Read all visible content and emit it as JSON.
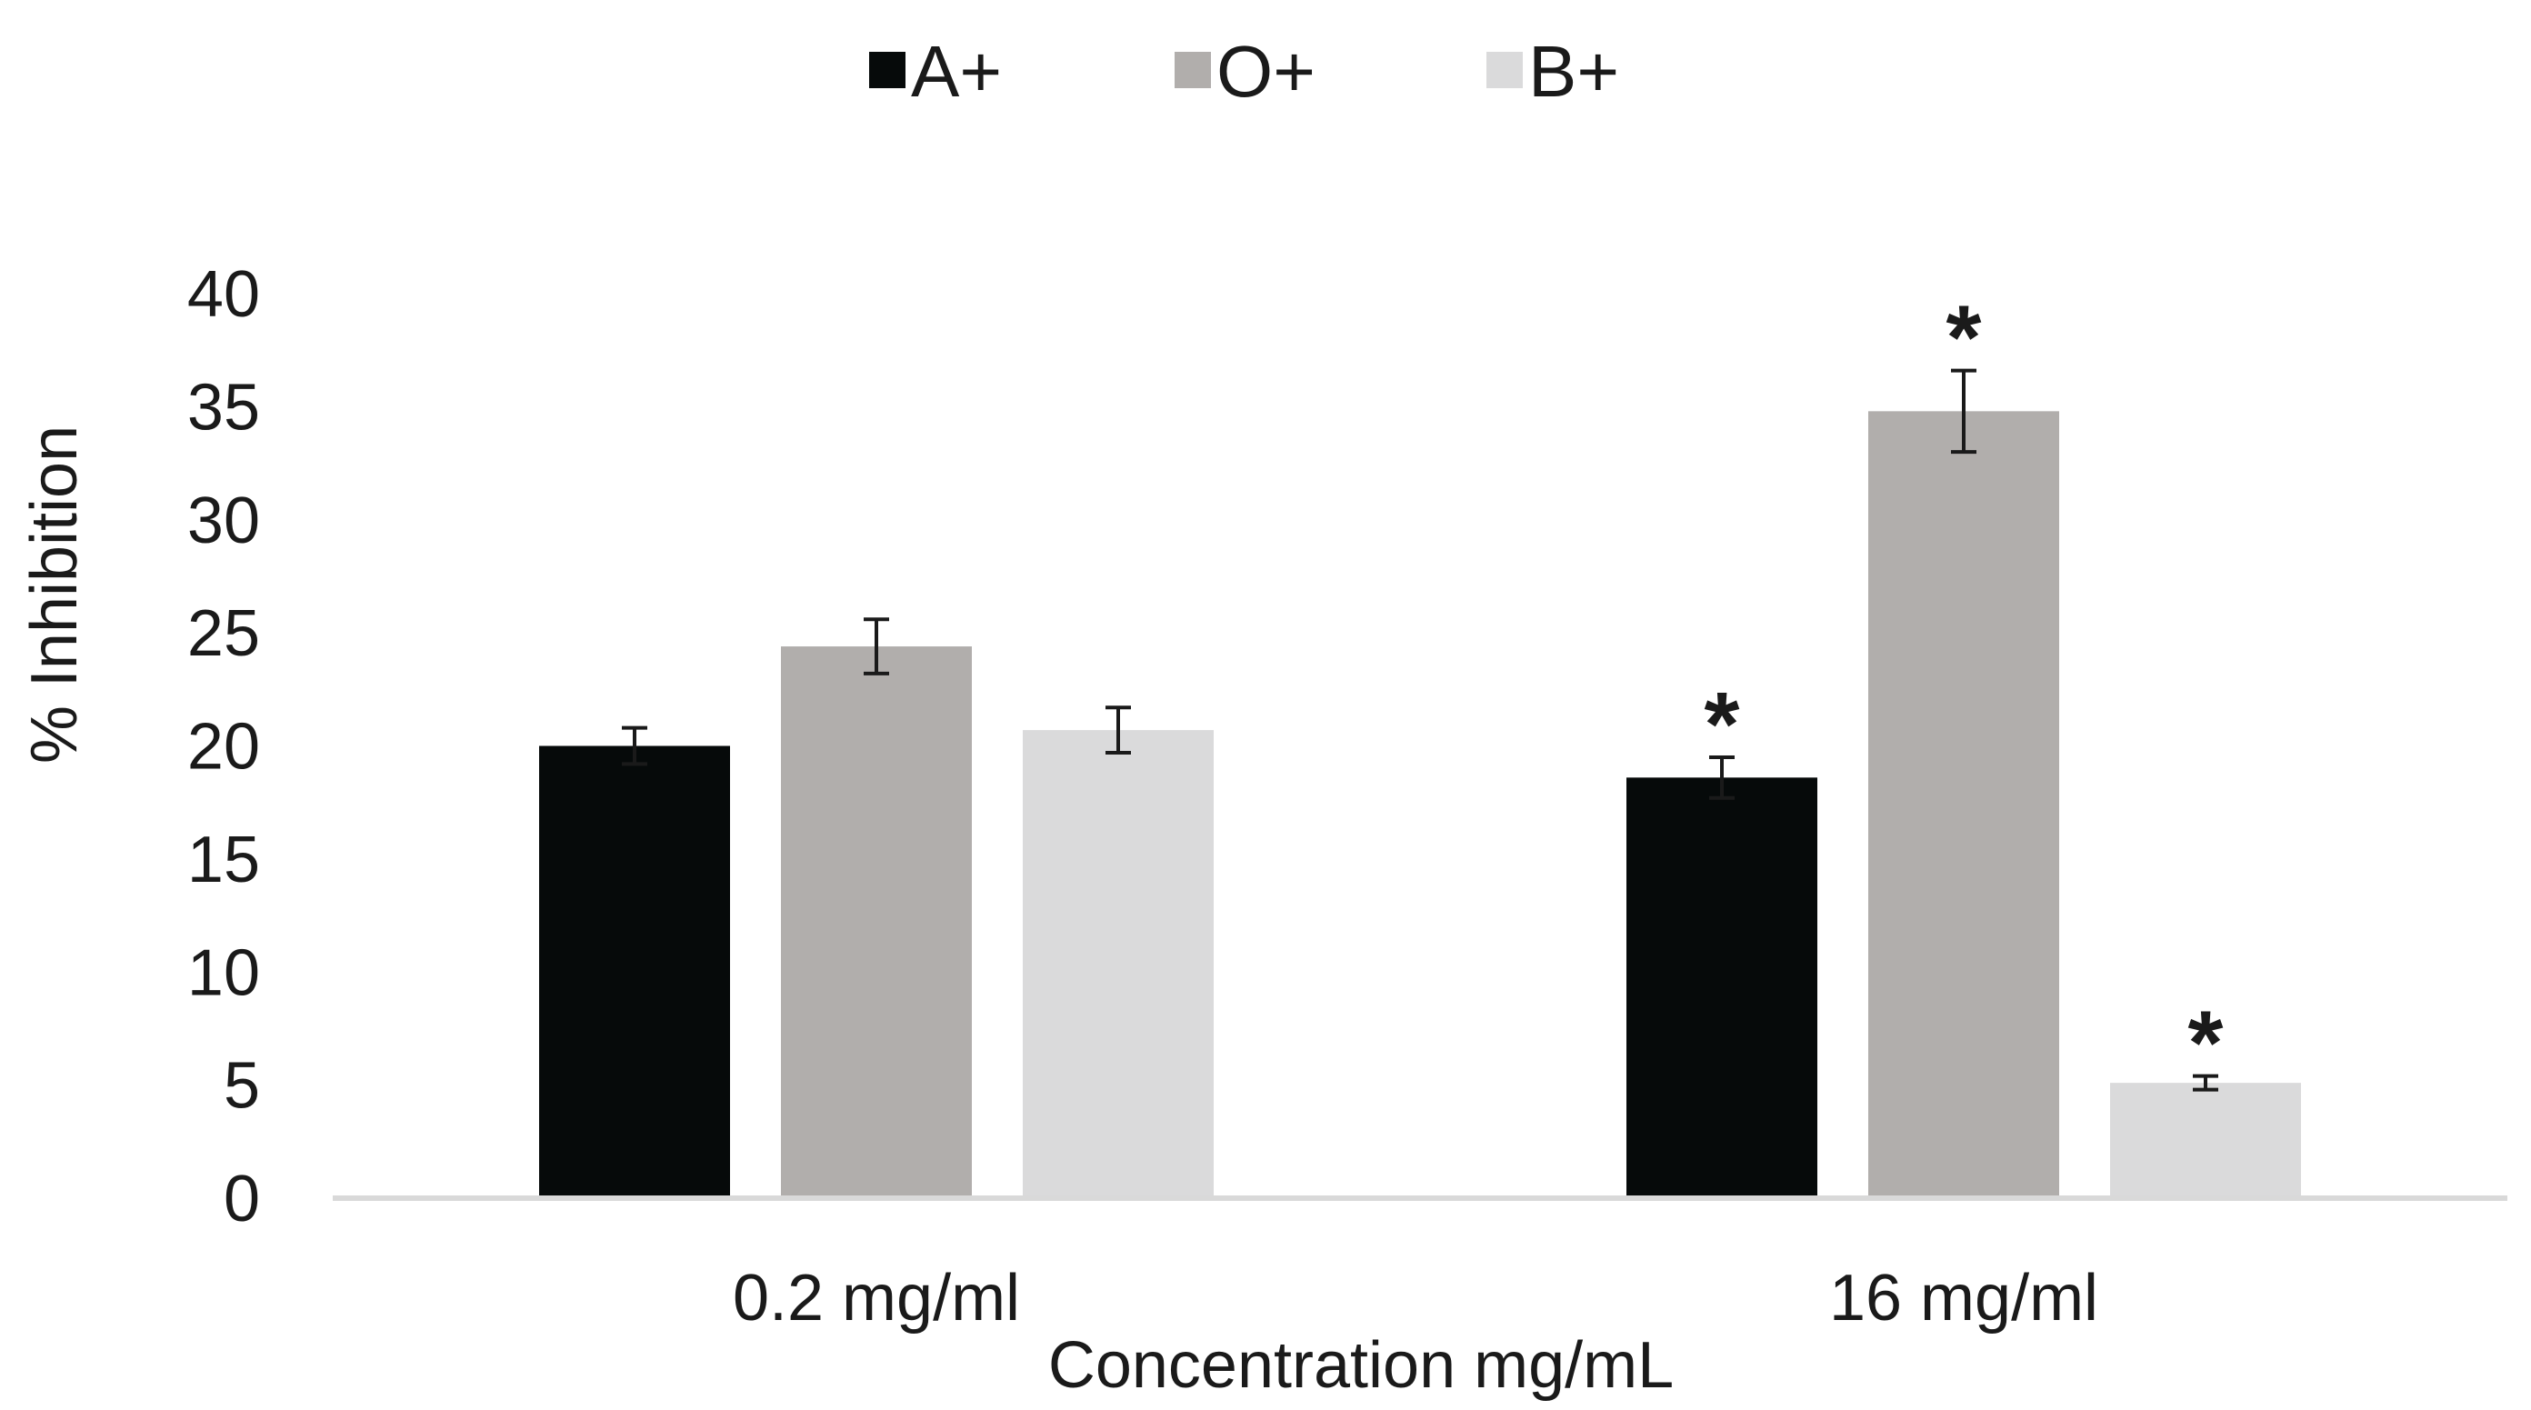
{
  "chart_data": {
    "type": "bar",
    "title": "",
    "xlabel": "Concentration mg/mL",
    "ylabel": "% Inhibition",
    "ylim": [
      0,
      40
    ],
    "yticks": [
      0,
      5,
      10,
      15,
      20,
      25,
      30,
      35,
      40
    ],
    "grid": false,
    "legend_position": "top-center",
    "categories": [
      "0.2 mg/ml",
      "16 mg/ml"
    ],
    "series": [
      {
        "name": "A+",
        "color": "#060a0a",
        "values": [
          20.0,
          18.6
        ],
        "errors": [
          0.8,
          0.9
        ],
        "significance": [
          "",
          "*"
        ]
      },
      {
        "name": "O+",
        "color": "#b1aeac",
        "values": [
          24.4,
          34.8
        ],
        "errors": [
          1.2,
          1.8
        ],
        "significance": [
          "",
          "*"
        ]
      },
      {
        "name": "B+",
        "color": "#dadadb",
        "values": [
          20.7,
          5.1
        ],
        "errors": [
          1.0,
          0.3
        ],
        "significance": [
          "",
          "*"
        ]
      }
    ]
  }
}
